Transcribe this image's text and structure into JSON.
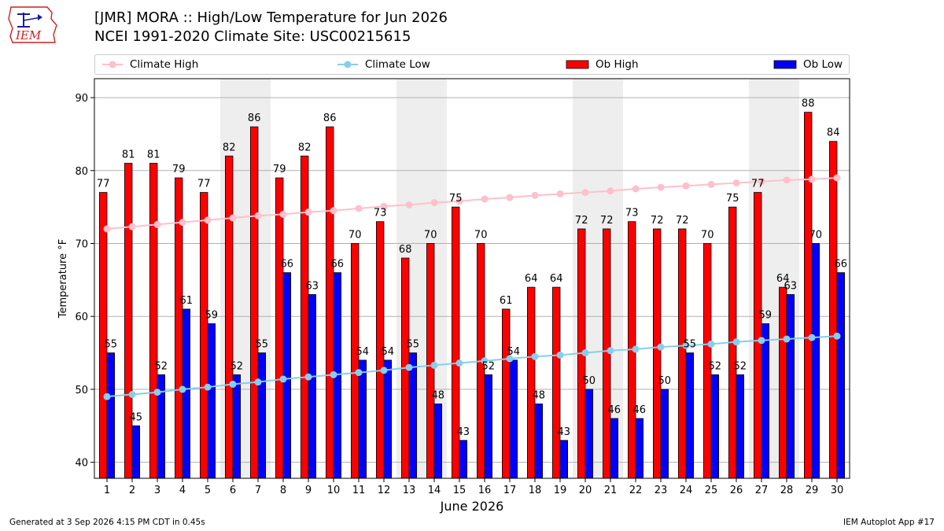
{
  "logo_text": "IEM",
  "title_line1": "[JMR] MORA :: High/Low Temperature for Jun 2026",
  "title_line2": "NCEI 1991-2020 Climate Site: USC00215615",
  "legend": {
    "climate_high": "Climate High",
    "climate_low": "Climate Low",
    "ob_high": "Ob High",
    "ob_low": "Ob Low"
  },
  "footer": {
    "generated": "Generated at 3 Sep 2026 4:15 PM CDT in 0.45s",
    "app": "IEM Autoplot App #17"
  },
  "colors": {
    "ob_high": "#ff0000",
    "ob_low": "#0000ff",
    "climate_high": "#ffc0cb",
    "climate_low": "#87ceeb",
    "weekend_shade": "#eeeeee",
    "logo_red": "#cc2222",
    "logo_blue": "#1a1aa0"
  },
  "chart_data": {
    "type": "bar",
    "xlabel": "June 2026",
    "ylabel": "Temperature °F",
    "ylim": [
      37.8,
      92.6
    ],
    "yticks": [
      40,
      50,
      60,
      70,
      80,
      90
    ],
    "grid": "horizontal",
    "legend_position": "top",
    "days": [
      1,
      2,
      3,
      4,
      5,
      6,
      7,
      8,
      9,
      10,
      11,
      12,
      13,
      14,
      15,
      16,
      17,
      18,
      19,
      20,
      21,
      22,
      23,
      24,
      25,
      26,
      27,
      28,
      29,
      30
    ],
    "shaded_days": [
      6,
      7,
      13,
      14,
      20,
      21,
      27,
      28
    ],
    "series": [
      {
        "name": "Ob High",
        "kind": "bar",
        "values": [
          77,
          81,
          81,
          79,
          77,
          82,
          86,
          79,
          82,
          86,
          70,
          73,
          68,
          70,
          75,
          70,
          61,
          64,
          64,
          72,
          72,
          73,
          72,
          72,
          70,
          75,
          77,
          64,
          88,
          84
        ]
      },
      {
        "name": "Ob Low",
        "kind": "bar",
        "values": [
          55,
          45,
          52,
          61,
          59,
          52,
          55,
          66,
          63,
          66,
          54,
          54,
          55,
          48,
          43,
          52,
          54,
          48,
          43,
          50,
          46,
          46,
          50,
          55,
          52,
          52,
          59,
          63,
          70,
          66
        ]
      },
      {
        "name": "Climate High",
        "kind": "line",
        "values": [
          72.0,
          72.3,
          72.6,
          72.9,
          73.2,
          73.5,
          73.8,
          74.0,
          74.3,
          74.5,
          74.8,
          75.1,
          75.3,
          75.6,
          75.8,
          76.1,
          76.3,
          76.6,
          76.8,
          77.0,
          77.2,
          77.5,
          77.7,
          77.9,
          78.1,
          78.3,
          78.5,
          78.7,
          78.8,
          79.0
        ]
      },
      {
        "name": "Climate Low",
        "kind": "line",
        "values": [
          49.0,
          49.3,
          49.6,
          50.0,
          50.3,
          50.7,
          51.0,
          51.4,
          51.7,
          52.0,
          52.3,
          52.6,
          53.0,
          53.3,
          53.6,
          53.9,
          54.2,
          54.5,
          54.7,
          55.0,
          55.3,
          55.5,
          55.8,
          56.0,
          56.2,
          56.5,
          56.7,
          56.9,
          57.1,
          57.3
        ]
      }
    ]
  }
}
